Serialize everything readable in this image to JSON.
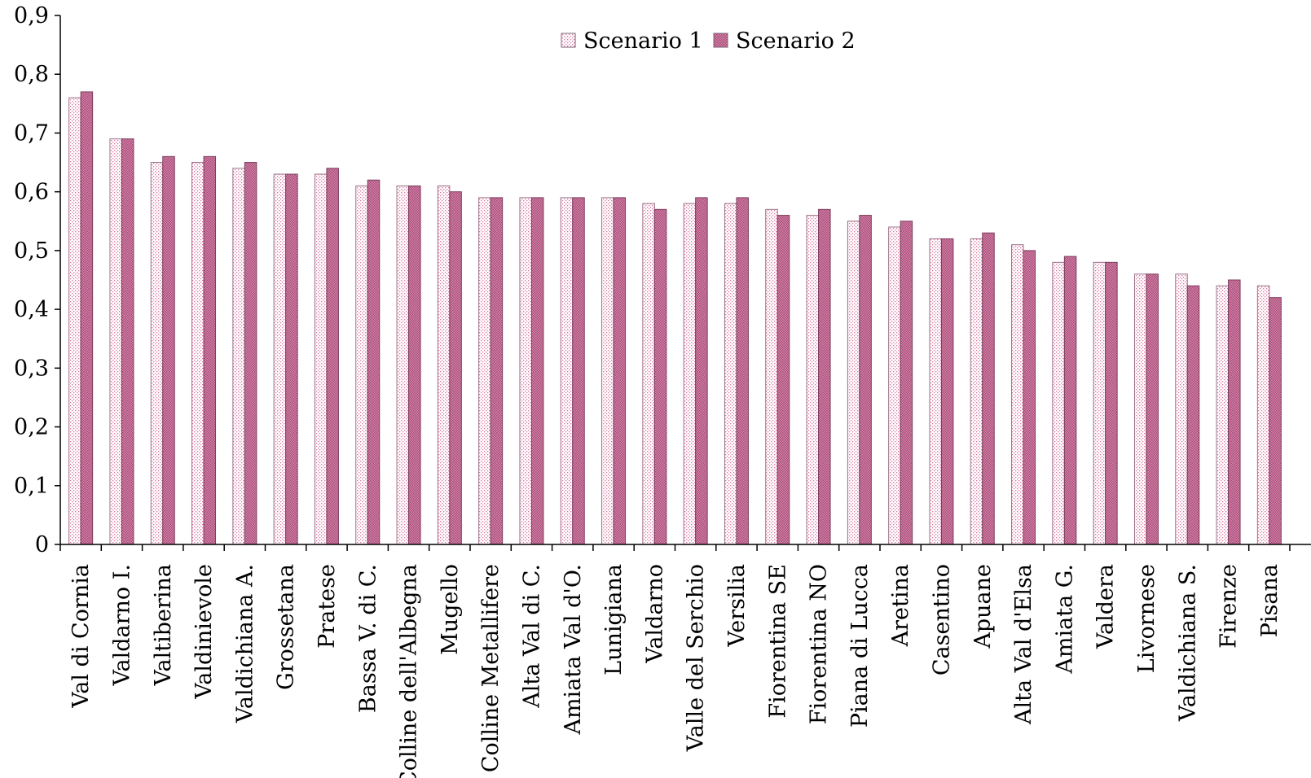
{
  "chart_data": {
    "type": "bar",
    "title": "",
    "xlabel": "",
    "ylabel": "",
    "ylim": [
      0,
      0.9
    ],
    "yticks": [
      0,
      0.1,
      0.2,
      0.3,
      0.4,
      0.5,
      0.6,
      0.7,
      0.8,
      0.9
    ],
    "ytick_labels": [
      "0",
      "0,1",
      "0,2",
      "0,3",
      "0,4",
      "0,5",
      "0,6",
      "0,7",
      "0,8",
      "0,9"
    ],
    "grid": false,
    "legend_position": "top-center",
    "categories": [
      "Val di Cornia",
      "Valdarno I.",
      "Valtiberina",
      "Valdinievole",
      "Valdichiana A.",
      "Grossetana",
      "Pratese",
      "Bassa V. di C.",
      "Colline dell'Albegna",
      "Mugello",
      "Colline Metallifere",
      "Alta Val di C.",
      "Amiata Val d'O.",
      "Lunigiana",
      "Valdarno",
      "Valle del Serchio",
      "Versilia",
      "Fiorentina SE",
      "Fiorentina NO",
      "Piana di Lucca",
      "Aretina",
      "Casentino",
      "Apuane",
      "Alta Val d'Elsa",
      "Amiata G.",
      "Valdera",
      "Livornese",
      "Valdichiana S.",
      "Firenze",
      "Pisana"
    ],
    "series": [
      {
        "name": "Scenario 1",
        "color": "#e8a3c0",
        "pattern": "dots",
        "values": [
          0.76,
          0.69,
          0.65,
          0.65,
          0.64,
          0.63,
          0.63,
          0.61,
          0.61,
          0.61,
          0.59,
          0.59,
          0.59,
          0.59,
          0.58,
          0.58,
          0.58,
          0.57,
          0.56,
          0.55,
          0.54,
          0.52,
          0.52,
          0.51,
          0.48,
          0.48,
          0.46,
          0.46,
          0.44,
          0.44
        ]
      },
      {
        "name": "Scenario 2",
        "color": "#c2678f",
        "pattern": "crosshatch",
        "values": [
          0.77,
          0.69,
          0.66,
          0.66,
          0.65,
          0.63,
          0.64,
          0.62,
          0.61,
          0.6,
          0.59,
          0.59,
          0.59,
          0.59,
          0.57,
          0.59,
          0.59,
          0.56,
          0.57,
          0.56,
          0.55,
          0.52,
          0.53,
          0.5,
          0.49,
          0.48,
          0.46,
          0.44,
          0.45,
          0.42
        ]
      }
    ]
  }
}
